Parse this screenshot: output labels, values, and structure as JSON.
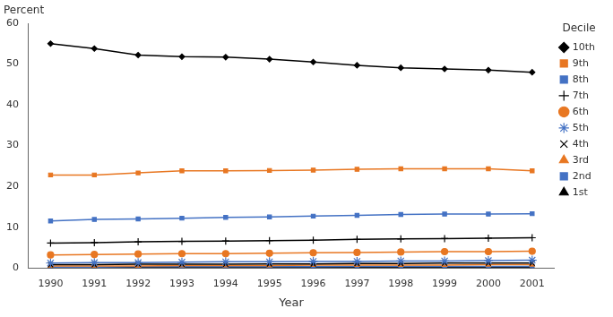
{
  "chart_data": {
    "type": "line",
    "xlabel": "Year",
    "ylabel": "Percent",
    "x": [
      1990,
      1991,
      1992,
      1993,
      1994,
      1995,
      1996,
      1997,
      1998,
      1999,
      2000,
      2001
    ],
    "series": [
      {
        "name": "10th",
        "color": "#000000",
        "marker": "diamond",
        "values": [
          55.0,
          53.8,
          52.2,
          51.8,
          51.7,
          51.2,
          50.5,
          49.7,
          49.1,
          48.8,
          48.5,
          48.0
        ]
      },
      {
        "name": "9th",
        "color": "#E87722",
        "marker": "square",
        "values": [
          22.8,
          22.8,
          23.3,
          23.8,
          23.8,
          23.9,
          24.0,
          24.2,
          24.3,
          24.3,
          24.3,
          23.8
        ]
      },
      {
        "name": "8th",
        "color": "#4472C4",
        "marker": "square",
        "values": [
          11.5,
          11.9,
          12.0,
          12.2,
          12.4,
          12.5,
          12.7,
          12.9,
          13.1,
          13.2,
          13.2,
          13.3
        ]
      },
      {
        "name": "7th",
        "color": "#000000",
        "marker": "plus",
        "values": [
          6.1,
          6.2,
          6.4,
          6.5,
          6.6,
          6.7,
          6.8,
          7.0,
          7.1,
          7.2,
          7.3,
          7.4
        ]
      },
      {
        "name": "6th",
        "color": "#E87722",
        "marker": "circle",
        "values": [
          3.2,
          3.3,
          3.4,
          3.5,
          3.5,
          3.6,
          3.7,
          3.8,
          3.9,
          4.0,
          4.0,
          4.1
        ]
      },
      {
        "name": "5th",
        "color": "#4472C4",
        "marker": "star",
        "values": [
          1.2,
          1.3,
          1.3,
          1.4,
          1.5,
          1.5,
          1.6,
          1.6,
          1.7,
          1.7,
          1.8,
          1.9
        ]
      },
      {
        "name": "4th",
        "color": "#000000",
        "marker": "x",
        "values": [
          0.8,
          0.8,
          0.9,
          0.9,
          0.9,
          1.0,
          1.0,
          1.1,
          1.1,
          1.2,
          1.2,
          1.2
        ]
      },
      {
        "name": "3rd",
        "color": "#E87722",
        "marker": "triangle",
        "values": [
          0.5,
          0.5,
          0.5,
          0.6,
          0.6,
          0.6,
          0.7,
          0.7,
          0.7,
          0.7,
          0.8,
          0.8
        ]
      },
      {
        "name": "2nd",
        "color": "#4472C4",
        "marker": "square",
        "values": [
          0.2,
          0.2,
          0.3,
          0.3,
          0.3,
          0.3,
          0.3,
          0.4,
          0.4,
          0.4,
          0.4,
          0.4
        ]
      },
      {
        "name": "1st",
        "color": "#000000",
        "marker": "triangle",
        "values": [
          0.1,
          0.1,
          0.1,
          0.1,
          0.1,
          0.1,
          0.1,
          0.1,
          0.1,
          0.1,
          0.1,
          0.1
        ]
      }
    ],
    "xlim": [
      1989.5,
      2001.5
    ],
    "xticks": [
      1990,
      1991,
      1992,
      1993,
      1994,
      1995,
      1996,
      1997,
      1998,
      1999,
      2000,
      2001
    ],
    "ylim": [
      0,
      60
    ],
    "yticks": [
      0,
      10,
      20,
      30,
      40,
      50,
      60
    ],
    "legend": "right",
    "legend_title": "Decile",
    "grid": false
  }
}
